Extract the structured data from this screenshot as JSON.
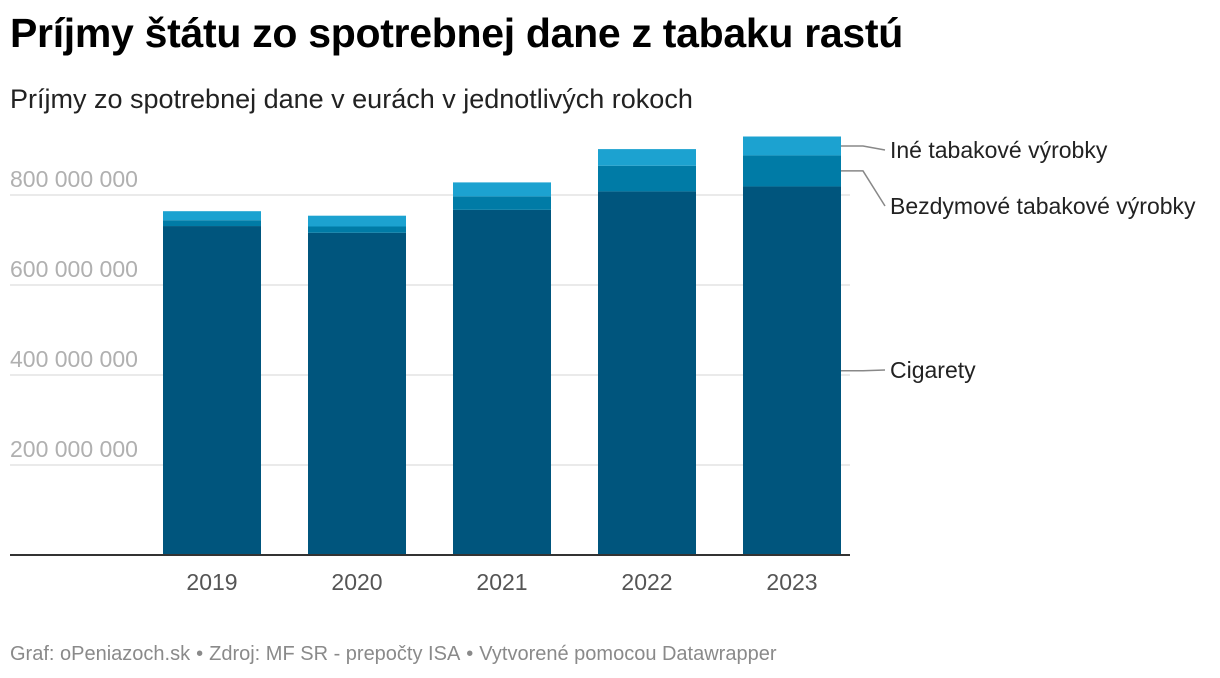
{
  "header": {
    "title": "Príjmy štátu zo spotrebnej dane z tabaku rastú",
    "subtitle": "Príjmy zo spotrebnej dane v eurách v jednotlivých rokoch"
  },
  "footer": {
    "graf": "Graf: oPeniazoch.sk",
    "source": "Zdroj: MF SR - prepočty ISA",
    "made_with": "Vytvorené pomocou Datawrapper",
    "separator": "•"
  },
  "colors": {
    "Cigarety": "#00557d",
    "Bezdymové tabakové výrobky": "#007ba6",
    "Iné tabakové výrobky": "#1ca2d0",
    "gridline": "#e3e3e3",
    "baseline": "#333333",
    "legend_line": "#888888"
  },
  "chart_data": {
    "type": "bar",
    "stacked": true,
    "categories": [
      "2019",
      "2020",
      "2021",
      "2022",
      "2023"
    ],
    "series": [
      {
        "name": "Cigarety",
        "values": [
          731000000,
          716000000,
          767000000,
          808000000,
          819000000
        ]
      },
      {
        "name": "Bezdymové tabakové výrobky",
        "values": [
          13000000,
          14000000,
          30000000,
          57000000,
          69000000
        ]
      },
      {
        "name": "Iné tabakové výrobky",
        "values": [
          20000000,
          24000000,
          31000000,
          37000000,
          42000000
        ]
      }
    ],
    "yticks": [
      200000000,
      400000000,
      600000000,
      800000000
    ],
    "ytick_labels": [
      "200 000 000",
      "400 000 000",
      "600 000 000",
      "800 000 000"
    ],
    "ylim": [
      0,
      930000000
    ],
    "grid": true,
    "legend": "right, labels at 2023 bar",
    "title": "Príjmy štátu zo spotrebnej dane z tabaku rastú",
    "subtitle": "Príjmy zo spotrebnej dane v eurách v jednotlivých rokoch",
    "xlabel": "",
    "ylabel": ""
  }
}
